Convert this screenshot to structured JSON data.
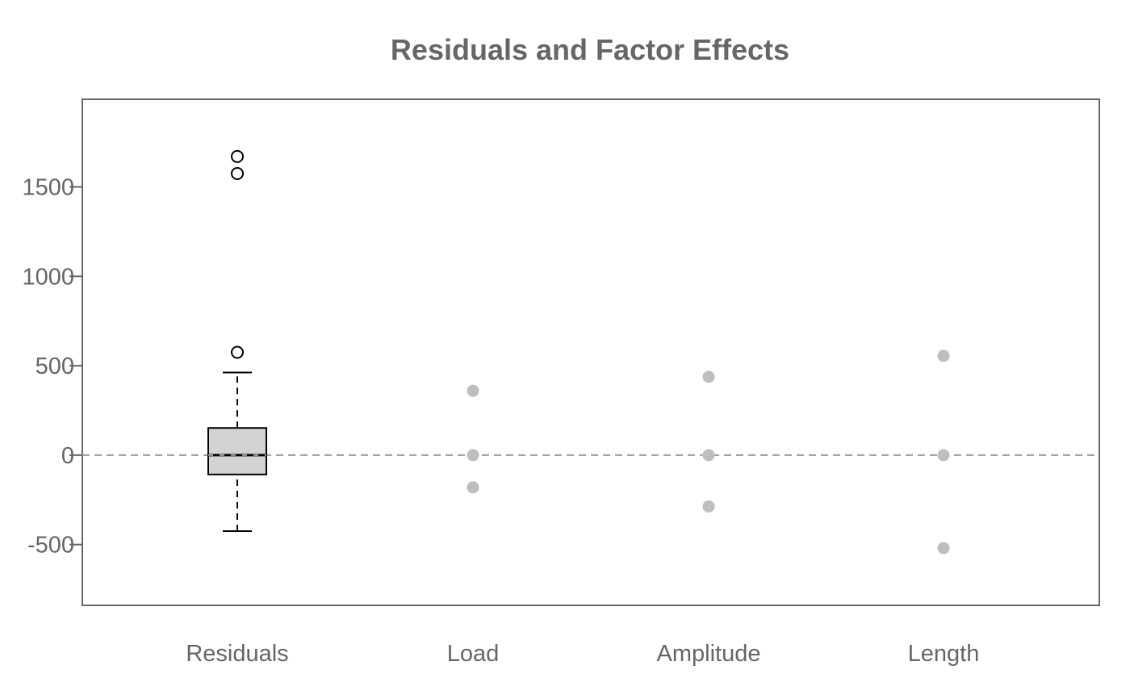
{
  "chart_data": {
    "type": "boxplot+scatter",
    "title": "Residuals and Factor Effects",
    "xlabel": "",
    "ylabel": "",
    "categories": [
      "Residuals",
      "Load",
      "Amplitude",
      "Length"
    ],
    "ylim": [
      -840,
      1990
    ],
    "y_ticks": [
      -500,
      0,
      500,
      1000,
      1500
    ],
    "y_tick_labels": [
      "-500",
      "0",
      "500",
      "1000",
      "1500"
    ],
    "reference_line": {
      "y": 0,
      "style": "dashed",
      "color": "#999999"
    },
    "boxplot": {
      "category": "Residuals",
      "whisker_low": -425,
      "q1": -108,
      "median": 0,
      "q3": 152,
      "whisker_high": 462,
      "outliers": [
        1670,
        1575,
        575
      ],
      "fill": "#d3d3d3"
    },
    "points": [
      {
        "category": "Load",
        "values": [
          360,
          0,
          -180
        ]
      },
      {
        "category": "Amplitude",
        "values": [
          438,
          0,
          -287
        ]
      },
      {
        "category": "Length",
        "values": [
          555,
          0,
          -520
        ]
      }
    ],
    "point_color": "#bebebe",
    "grid": false,
    "legend": "none"
  }
}
